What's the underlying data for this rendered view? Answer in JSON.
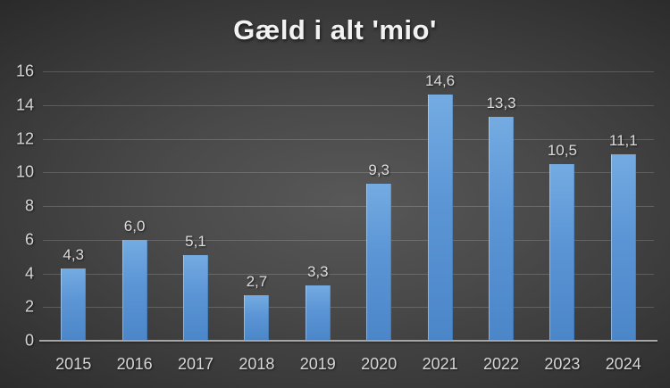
{
  "chart_data": {
    "type": "bar",
    "title": "Gæld i alt 'mio'",
    "categories": [
      "2015",
      "2016",
      "2017",
      "2018",
      "2019",
      "2020",
      "2021",
      "2022",
      "2023",
      "2024"
    ],
    "values": [
      4.3,
      6.0,
      5.1,
      2.7,
      3.3,
      9.3,
      14.6,
      13.3,
      10.5,
      11.1
    ],
    "value_labels": [
      "4,3",
      "6,0",
      "5,1",
      "2,7",
      "3,3",
      "9,3",
      "14,6",
      "13,3",
      "10,5",
      "11,1"
    ],
    "xlabel": "",
    "ylabel": "",
    "ylim": [
      0,
      16
    ],
    "y_ticks": [
      0,
      2,
      4,
      6,
      8,
      10,
      12,
      14,
      16
    ],
    "y_tick_labels": [
      "0",
      "2",
      "4",
      "6",
      "8",
      "10",
      "12",
      "14",
      "16"
    ],
    "grid": true,
    "legend": "none",
    "colors": {
      "background_center": "#585858",
      "background_edge": "#222222",
      "bar_top": "#74abe2",
      "bar_bottom": "#4b86c9",
      "gridline": "#606060",
      "axis_line": "#a6a6a6",
      "tick_label_text": "#d6d6d6",
      "data_label_text": "#dcdcdc",
      "title_text": "#f2f2f2"
    }
  }
}
